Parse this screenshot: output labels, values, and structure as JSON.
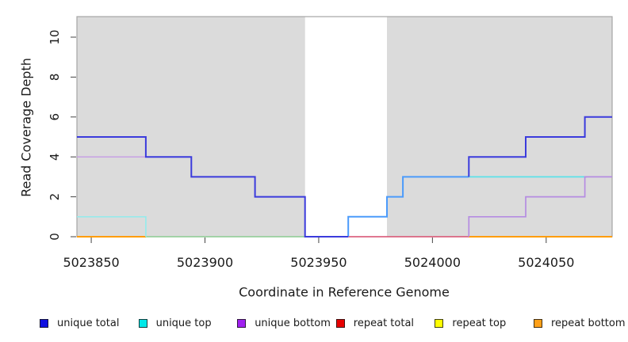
{
  "chart_data": {
    "type": "line",
    "subtype": "step-coverage-plot",
    "title": "",
    "xlabel": "Coordinate in Reference Genome",
    "ylabel": "Read Coverage Depth",
    "x_range": [
      5023843.7,
      5024079
    ],
    "y_range": [
      0,
      11.03
    ],
    "x_ticks": [
      5023850,
      5023900,
      5023950,
      5024000,
      5024050
    ],
    "y_ticks": [
      0,
      2,
      4,
      6,
      8,
      10
    ],
    "grid": false,
    "legend_position": "bottom",
    "plot_background_color": "#DBDBDB",
    "plot_border_color": "#A5A5A5",
    "tick_color": "#444444",
    "text_color": "#1a1a1a",
    "highlight_region": {
      "name": "no-coverage-gap",
      "x_start": 5023944,
      "x_end": 5023980,
      "color": "#FFFFFF"
    },
    "series": [
      {
        "name": "unique total",
        "color": "#0F0FE0",
        "steps": [
          [
            5023844,
            5
          ],
          [
            5023874,
            4
          ],
          [
            5023894,
            3
          ],
          [
            5023922,
            2
          ],
          [
            5023944,
            0
          ],
          [
            5023963,
            1
          ],
          [
            5023980,
            2
          ],
          [
            5023987,
            3
          ],
          [
            5024016,
            4
          ],
          [
            5024041,
            5
          ],
          [
            5024067,
            6
          ],
          [
            5024079,
            6
          ]
        ]
      },
      {
        "name": "unique top",
        "color": "#00E8E8",
        "steps": [
          [
            5023844,
            1
          ],
          [
            5023874,
            0
          ],
          [
            5023963,
            1
          ],
          [
            5023980,
            2
          ],
          [
            5023987,
            3
          ],
          [
            5024079,
            3
          ]
        ]
      },
      {
        "name": "unique bottom",
        "color": "#A020F0",
        "steps": [
          [
            5023844,
            4
          ],
          [
            5023894,
            3
          ],
          [
            5023922,
            2
          ],
          [
            5023944,
            0
          ],
          [
            5024016,
            1
          ],
          [
            5024041,
            2
          ],
          [
            5024067,
            3
          ],
          [
            5024079,
            3
          ]
        ]
      },
      {
        "name": "repeat total",
        "color": "#E80000",
        "steps": [
          [
            5023844,
            0
          ],
          [
            5024079,
            0
          ]
        ]
      },
      {
        "name": "repeat top",
        "color": "#FFFF00",
        "steps": [
          [
            5023844,
            0
          ],
          [
            5024079,
            0
          ]
        ]
      },
      {
        "name": "repeat bottom",
        "color": "#FFA018",
        "steps": [
          [
            5023844,
            0
          ],
          [
            5024079,
            0
          ]
        ]
      }
    ],
    "visible_segments": [
      {
        "name": "zero-line-orange-left",
        "color": "#FF9C00",
        "lw": 2,
        "points": [
          [
            5023843.7,
            0
          ],
          [
            5023874,
            0
          ]
        ]
      },
      {
        "name": "zero-line-green",
        "color": "#90CF95",
        "lw": 1.6,
        "points": [
          [
            5023874,
            0
          ],
          [
            5023944,
            0
          ]
        ]
      },
      {
        "name": "zero-line-red",
        "color": "#DC5273",
        "lw": 1.6,
        "points": [
          [
            5023963,
            0
          ],
          [
            5024016,
            0
          ]
        ]
      },
      {
        "name": "zero-line-orange-right",
        "color": "#FF9C00",
        "lw": 2,
        "points": [
          [
            5024016,
            0
          ],
          [
            5024079,
            0
          ]
        ]
      },
      {
        "name": "unique-bottom-line-left",
        "color": "#C49BE6",
        "lw": 1.4,
        "points": [
          [
            5023843.7,
            4
          ],
          [
            5023874,
            4
          ]
        ]
      },
      {
        "name": "unique-top-line-left",
        "color": "#97EAEB",
        "lw": 1.7,
        "points": [
          [
            5023843.7,
            1
          ],
          [
            5023874,
            1
          ],
          [
            5023874,
            0
          ]
        ]
      },
      {
        "name": "unique-top-line-right",
        "color": "#5CE1E8",
        "lw": 1.7,
        "points": [
          [
            5024016,
            3
          ],
          [
            5024068,
            3
          ]
        ]
      },
      {
        "name": "unique-bottom-line-right",
        "color": "#B58CE2",
        "lw": 1.7,
        "points": [
          [
            5024016,
            0
          ],
          [
            5024016,
            1
          ],
          [
            5024041,
            1
          ],
          [
            5024041,
            2
          ],
          [
            5024067,
            2
          ],
          [
            5024067,
            3
          ],
          [
            5024079,
            3
          ]
        ]
      },
      {
        "name": "unique-total-top-overlap-line",
        "color": "#4B9BFB",
        "lw": 2,
        "points": [
          [
            5023963,
            0
          ],
          [
            5023963,
            1
          ],
          [
            5023980,
            1
          ],
          [
            5023980,
            2
          ],
          [
            5023987,
            2
          ],
          [
            5023987,
            3
          ],
          [
            5024016,
            3
          ]
        ]
      },
      {
        "name": "unique-total-line-left",
        "color": "#3B3BDC",
        "lw": 2,
        "points": [
          [
            5023843.7,
            5
          ],
          [
            5023874,
            5
          ],
          [
            5023874,
            4
          ],
          [
            5023894,
            4
          ],
          [
            5023894,
            3
          ],
          [
            5023922,
            3
          ],
          [
            5023922,
            2
          ],
          [
            5023944,
            2
          ],
          [
            5023944,
            0
          ],
          [
            5023963,
            0
          ]
        ]
      },
      {
        "name": "unique-total-line-right",
        "color": "#3B3BDC",
        "lw": 2,
        "points": [
          [
            5024016,
            3
          ],
          [
            5024016,
            4
          ],
          [
            5024041,
            4
          ],
          [
            5024041,
            5
          ],
          [
            5024067,
            5
          ],
          [
            5024067,
            6
          ],
          [
            5024079,
            6
          ]
        ]
      }
    ],
    "legend": {
      "items": [
        {
          "label": "unique total",
          "color": "#0F0FE0"
        },
        {
          "label": "unique top",
          "color": "#00E8E8"
        },
        {
          "label": "unique bottom",
          "color": "#A020F0"
        },
        {
          "label": "repeat total",
          "color": "#E80000"
        },
        {
          "label": "repeat top",
          "color": "#FFFF00"
        },
        {
          "label": "repeat bottom",
          "color": "#FFA018"
        }
      ]
    }
  }
}
